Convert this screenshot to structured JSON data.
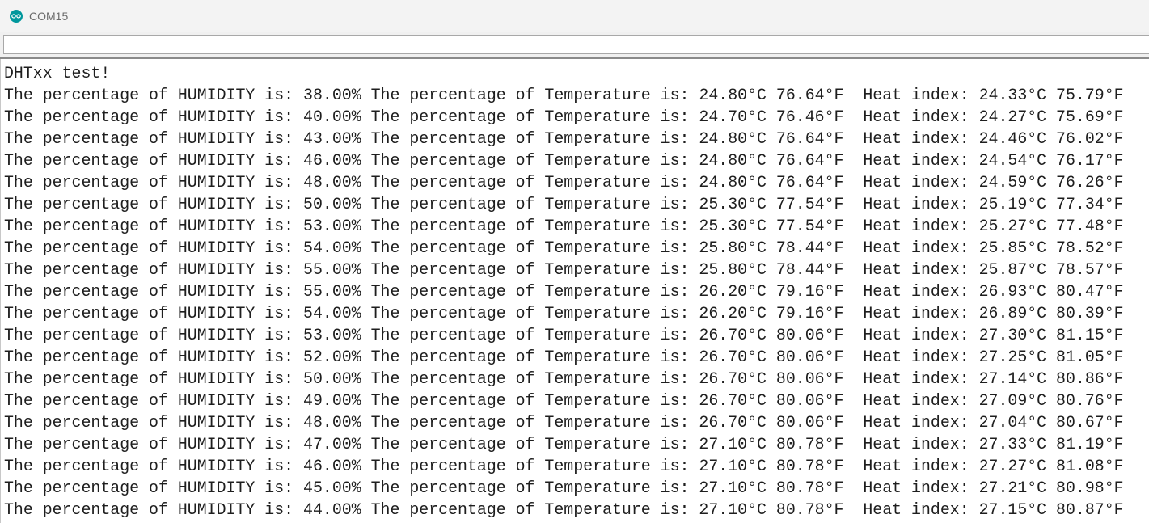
{
  "window": {
    "title": "COM15",
    "icon": "arduino-infinity-icon",
    "accent": "#00979c"
  },
  "send_input": {
    "value": "",
    "placeholder": ""
  },
  "output": {
    "lines": [
      "DHTxx test!",
      "The percentage of HUMIDITY is: 38.00% The percentage of Temperature is: 24.80°C 76.64°F  Heat index: 24.33°C 75.79°F",
      "The percentage of HUMIDITY is: 40.00% The percentage of Temperature is: 24.70°C 76.46°F  Heat index: 24.27°C 75.69°F",
      "The percentage of HUMIDITY is: 43.00% The percentage of Temperature is: 24.80°C 76.64°F  Heat index: 24.46°C 76.02°F",
      "The percentage of HUMIDITY is: 46.00% The percentage of Temperature is: 24.80°C 76.64°F  Heat index: 24.54°C 76.17°F",
      "The percentage of HUMIDITY is: 48.00% The percentage of Temperature is: 24.80°C 76.64°F  Heat index: 24.59°C 76.26°F",
      "The percentage of HUMIDITY is: 50.00% The percentage of Temperature is: 25.30°C 77.54°F  Heat index: 25.19°C 77.34°F",
      "The percentage of HUMIDITY is: 53.00% The percentage of Temperature is: 25.30°C 77.54°F  Heat index: 25.27°C 77.48°F",
      "The percentage of HUMIDITY is: 54.00% The percentage of Temperature is: 25.80°C 78.44°F  Heat index: 25.85°C 78.52°F",
      "The percentage of HUMIDITY is: 55.00% The percentage of Temperature is: 25.80°C 78.44°F  Heat index: 25.87°C 78.57°F",
      "The percentage of HUMIDITY is: 55.00% The percentage of Temperature is: 26.20°C 79.16°F  Heat index: 26.93°C 80.47°F",
      "The percentage of HUMIDITY is: 54.00% The percentage of Temperature is: 26.20°C 79.16°F  Heat index: 26.89°C 80.39°F",
      "The percentage of HUMIDITY is: 53.00% The percentage of Temperature is: 26.70°C 80.06°F  Heat index: 27.30°C 81.15°F",
      "The percentage of HUMIDITY is: 52.00% The percentage of Temperature is: 26.70°C 80.06°F  Heat index: 27.25°C 81.05°F",
      "The percentage of HUMIDITY is: 50.00% The percentage of Temperature is: 26.70°C 80.06°F  Heat index: 27.14°C 80.86°F",
      "The percentage of HUMIDITY is: 49.00% The percentage of Temperature is: 26.70°C 80.06°F  Heat index: 27.09°C 80.76°F",
      "The percentage of HUMIDITY is: 48.00% The percentage of Temperature is: 26.70°C 80.06°F  Heat index: 27.04°C 80.67°F",
      "The percentage of HUMIDITY is: 47.00% The percentage of Temperature is: 27.10°C 80.78°F  Heat index: 27.33°C 81.19°F",
      "The percentage of HUMIDITY is: 46.00% The percentage of Temperature is: 27.10°C 80.78°F  Heat index: 27.27°C 81.08°F",
      "The percentage of HUMIDITY is: 45.00% The percentage of Temperature is: 27.10°C 80.78°F  Heat index: 27.21°C 80.98°F",
      "The percentage of HUMIDITY is: 44.00% The percentage of Temperature is: 27.10°C 80.78°F  Heat index: 27.15°C 80.87°F"
    ]
  }
}
